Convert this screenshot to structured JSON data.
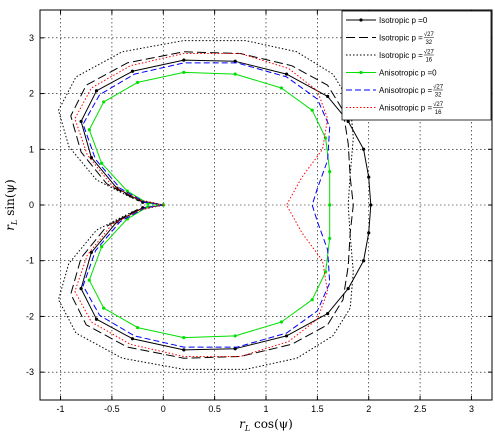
{
  "chart_data": {
    "type": "line",
    "title": "",
    "xlabel": "r_L cos(ψ)",
    "ylabel": "r_L sin(ψ)",
    "xlabel_base": "r",
    "xlabel_sub": "L",
    "xlabel_func": " cos(ψ)",
    "ylabel_base": "r",
    "ylabel_sub": "L",
    "ylabel_func": " sin(ψ)",
    "xlim": [
      -1.2,
      3.2
    ],
    "ylim": [
      -3.5,
      3.5
    ],
    "xticks": [
      -1,
      -0.5,
      0,
      0.5,
      1,
      1.5,
      2,
      2.5,
      3
    ],
    "yticks": [
      -3,
      -2,
      -1,
      0,
      1,
      2,
      3
    ],
    "grid": true,
    "legend_position": "top-right",
    "series": [
      {
        "name": "Isotropic p = 0",
        "legend_prefix": "Isotropic p = ",
        "legend_value": "0",
        "color": "#000000",
        "style": "solid-dot",
        "points": [
          [
            0,
            0
          ],
          [
            -0.2,
            -0.05
          ],
          [
            -0.45,
            -0.3
          ],
          [
            -0.7,
            -0.85
          ],
          [
            -0.8,
            -1.5
          ],
          [
            -0.65,
            -2.05
          ],
          [
            -0.3,
            -2.4
          ],
          [
            0.2,
            -2.6
          ],
          [
            0.7,
            -2.58
          ],
          [
            1.2,
            -2.35
          ],
          [
            1.6,
            -1.95
          ],
          [
            1.8,
            -1.5
          ],
          [
            1.95,
            -1.0
          ],
          [
            2.0,
            -0.5
          ],
          [
            2.02,
            0
          ],
          [
            2.0,
            0.5
          ],
          [
            1.95,
            1.0
          ],
          [
            1.8,
            1.5
          ],
          [
            1.6,
            1.95
          ],
          [
            1.2,
            2.35
          ],
          [
            0.7,
            2.58
          ],
          [
            0.2,
            2.6
          ],
          [
            -0.3,
            2.4
          ],
          [
            -0.65,
            2.05
          ],
          [
            -0.8,
            1.5
          ],
          [
            -0.7,
            0.85
          ],
          [
            -0.45,
            0.3
          ],
          [
            -0.2,
            0.05
          ],
          [
            0,
            0
          ]
        ]
      },
      {
        "name": "Isotropic p = √27/32",
        "legend_prefix": "Isotropic p = ",
        "legend_value": "√27/32",
        "legend_num": "√27",
        "legend_den": "32",
        "color": "#000000",
        "style": "longdash",
        "points": [
          [
            0,
            0
          ],
          [
            -0.25,
            -0.08
          ],
          [
            -0.55,
            -0.38
          ],
          [
            -0.8,
            -0.95
          ],
          [
            -0.9,
            -1.6
          ],
          [
            -0.75,
            -2.15
          ],
          [
            -0.35,
            -2.55
          ],
          [
            0.2,
            -2.75
          ],
          [
            0.75,
            -2.72
          ],
          [
            1.25,
            -2.5
          ],
          [
            1.6,
            -2.15
          ],
          [
            1.75,
            -1.7
          ],
          [
            1.8,
            -1.1
          ],
          [
            1.82,
            -0.5
          ],
          [
            1.85,
            0
          ],
          [
            1.82,
            0.5
          ],
          [
            1.8,
            1.1
          ],
          [
            1.75,
            1.7
          ],
          [
            1.6,
            2.15
          ],
          [
            1.25,
            2.5
          ],
          [
            0.75,
            2.72
          ],
          [
            0.2,
            2.75
          ],
          [
            -0.35,
            2.55
          ],
          [
            -0.75,
            2.15
          ],
          [
            -0.9,
            1.6
          ],
          [
            -0.8,
            0.95
          ],
          [
            -0.55,
            0.38
          ],
          [
            -0.25,
            0.08
          ],
          [
            0,
            0
          ]
        ]
      },
      {
        "name": "Isotropic p = √27/16",
        "legend_prefix": "Isotropic p = ",
        "legend_value": "√27/16",
        "legend_num": "√27",
        "legend_den": "16",
        "color": "#000000",
        "style": "dotted",
        "points": [
          [
            0,
            0
          ],
          [
            -0.3,
            -0.12
          ],
          [
            -0.65,
            -0.45
          ],
          [
            -0.92,
            -1.05
          ],
          [
            -1.02,
            -1.7
          ],
          [
            -0.85,
            -2.3
          ],
          [
            -0.4,
            -2.75
          ],
          [
            0.2,
            -2.95
          ],
          [
            0.8,
            -2.95
          ],
          [
            1.3,
            -2.75
          ],
          [
            1.65,
            -2.35
          ],
          [
            1.82,
            -1.85
          ],
          [
            1.85,
            -1.2
          ],
          [
            1.82,
            -0.55
          ],
          [
            1.8,
            0
          ],
          [
            1.82,
            0.55
          ],
          [
            1.85,
            1.2
          ],
          [
            1.82,
            1.85
          ],
          [
            1.65,
            2.35
          ],
          [
            1.3,
            2.75
          ],
          [
            0.8,
            2.95
          ],
          [
            0.2,
            2.95
          ],
          [
            -0.4,
            2.75
          ],
          [
            -0.85,
            2.3
          ],
          [
            -1.02,
            1.7
          ],
          [
            -0.92,
            1.05
          ],
          [
            -0.65,
            0.45
          ],
          [
            -0.3,
            0.12
          ],
          [
            0,
            0
          ]
        ]
      },
      {
        "name": "Anisotropic p = 0",
        "legend_prefix": "Anisotropic p = ",
        "legend_value": "0",
        "color": "#00e000",
        "style": "solid-dot",
        "points": [
          [
            0,
            0
          ],
          [
            -0.15,
            -0.03
          ],
          [
            -0.35,
            -0.25
          ],
          [
            -0.6,
            -0.75
          ],
          [
            -0.72,
            -1.35
          ],
          [
            -0.58,
            -1.85
          ],
          [
            -0.25,
            -2.2
          ],
          [
            0.2,
            -2.38
          ],
          [
            0.7,
            -2.35
          ],
          [
            1.15,
            -2.1
          ],
          [
            1.45,
            -1.7
          ],
          [
            1.58,
            -1.2
          ],
          [
            1.62,
            -0.6
          ],
          [
            1.62,
            0
          ],
          [
            1.62,
            0.6
          ],
          [
            1.58,
            1.2
          ],
          [
            1.45,
            1.7
          ],
          [
            1.15,
            2.1
          ],
          [
            0.7,
            2.35
          ],
          [
            0.2,
            2.38
          ],
          [
            -0.25,
            2.2
          ],
          [
            -0.58,
            1.85
          ],
          [
            -0.72,
            1.35
          ],
          [
            -0.6,
            0.75
          ],
          [
            -0.35,
            0.25
          ],
          [
            -0.15,
            0.03
          ],
          [
            0,
            0
          ]
        ]
      },
      {
        "name": "Anisotropic p = √27/32",
        "legend_prefix": "Anisotropic p = ",
        "legend_value": "√27/32",
        "legend_num": "√27",
        "legend_den": "32",
        "color": "#0000ff",
        "style": "dash",
        "points": [
          [
            0,
            0
          ],
          [
            -0.18,
            -0.05
          ],
          [
            -0.42,
            -0.3
          ],
          [
            -0.66,
            -0.82
          ],
          [
            -0.78,
            -1.45
          ],
          [
            -0.62,
            -1.98
          ],
          [
            -0.28,
            -2.35
          ],
          [
            0.2,
            -2.55
          ],
          [
            0.72,
            -2.55
          ],
          [
            1.2,
            -2.3
          ],
          [
            1.5,
            -1.9
          ],
          [
            1.62,
            -1.4
          ],
          [
            1.6,
            -0.8
          ],
          [
            1.5,
            -0.3
          ],
          [
            1.45,
            0
          ],
          [
            1.5,
            0.3
          ],
          [
            1.6,
            0.8
          ],
          [
            1.62,
            1.4
          ],
          [
            1.5,
            1.9
          ],
          [
            1.2,
            2.3
          ],
          [
            0.72,
            2.55
          ],
          [
            0.2,
            2.55
          ],
          [
            -0.28,
            2.35
          ],
          [
            -0.62,
            1.98
          ],
          [
            -0.78,
            1.45
          ],
          [
            -0.66,
            0.82
          ],
          [
            -0.42,
            0.3
          ],
          [
            -0.18,
            0.05
          ],
          [
            0,
            0
          ]
        ]
      },
      {
        "name": "Anisotropic p = √27/16",
        "legend_prefix": "Anisotropic p = ",
        "legend_value": "√27/16",
        "legend_num": "√27",
        "legend_den": "16",
        "color": "#ff0000",
        "style": "dotted",
        "points": [
          [
            0,
            0
          ],
          [
            -0.22,
            -0.08
          ],
          [
            -0.5,
            -0.35
          ],
          [
            -0.74,
            -0.9
          ],
          [
            -0.86,
            -1.55
          ],
          [
            -0.7,
            -2.1
          ],
          [
            -0.32,
            -2.5
          ],
          [
            0.2,
            -2.72
          ],
          [
            0.75,
            -2.72
          ],
          [
            1.22,
            -2.45
          ],
          [
            1.5,
            -2.05
          ],
          [
            1.6,
            -1.55
          ],
          [
            1.55,
            -1.0
          ],
          [
            1.35,
            -0.5
          ],
          [
            1.2,
            0
          ],
          [
            1.35,
            0.5
          ],
          [
            1.55,
            1.0
          ],
          [
            1.6,
            1.55
          ],
          [
            1.5,
            2.05
          ],
          [
            1.22,
            2.45
          ],
          [
            0.75,
            2.72
          ],
          [
            0.2,
            2.72
          ],
          [
            -0.32,
            2.5
          ],
          [
            -0.7,
            2.1
          ],
          [
            -0.86,
            1.55
          ],
          [
            -0.74,
            0.9
          ],
          [
            -0.5,
            0.35
          ],
          [
            -0.22,
            0.08
          ],
          [
            0,
            0
          ]
        ]
      }
    ]
  }
}
